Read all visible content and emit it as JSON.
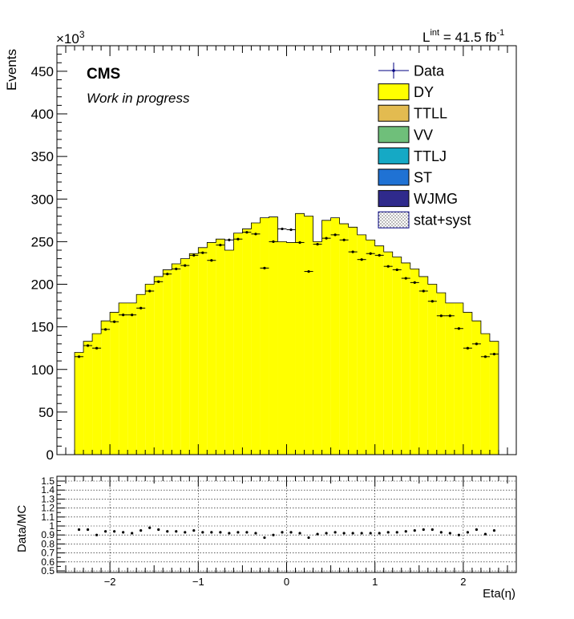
{
  "header": {
    "exponent_base": "×10",
    "exponent_power": "3",
    "lumi_L": "L",
    "lumi_sup": "int",
    "lumi_value": " = 41.5 fb",
    "lumi_unit_sup": "-1",
    "cms_label": "CMS",
    "work_label": "Work in progress"
  },
  "legend": {
    "entries": [
      {
        "label": "Data",
        "kind": "marker",
        "color": "#000080"
      },
      {
        "label": "DY",
        "kind": "box",
        "color": "#ffff00"
      },
      {
        "label": "TTLL",
        "kind": "box",
        "color": "#e3bb50"
      },
      {
        "label": "VV",
        "kind": "box",
        "color": "#6fbf7a"
      },
      {
        "label": "TTLJ",
        "kind": "box",
        "color": "#15a9c5"
      },
      {
        "label": "ST",
        "kind": "box",
        "color": "#1f72d4"
      },
      {
        "label": "WJMG",
        "kind": "box",
        "color": "#2f2a8c"
      },
      {
        "label": "stat+syst",
        "kind": "hatch",
        "color": "#555555"
      }
    ]
  },
  "chart_data": [
    {
      "type": "bar",
      "panel": "main",
      "ylabel": "Events",
      "ylim": [
        0,
        480
      ],
      "xlim": [
        -2.6,
        2.6
      ],
      "ytick_values": [
        0,
        50,
        100,
        150,
        200,
        250,
        300,
        350,
        400,
        450
      ],
      "ytick_labels": [
        "0",
        "50",
        "100",
        "150",
        "200",
        "250",
        "300",
        "350",
        "400",
        "450"
      ],
      "bin_edges": [
        -2.4,
        -2.3,
        -2.2,
        -2.1,
        -2.0,
        -1.9,
        -1.8,
        -1.7,
        -1.6,
        -1.5,
        -1.4,
        -1.3,
        -1.2,
        -1.1,
        -1.0,
        -0.9,
        -0.8,
        -0.7,
        -0.6,
        -0.5,
        -0.4,
        -0.3,
        -0.2,
        -0.1,
        0.0,
        0.1,
        0.2,
        0.3,
        0.4,
        0.5,
        0.6,
        0.7,
        0.8,
        0.9,
        1.0,
        1.1,
        1.2,
        1.3,
        1.4,
        1.5,
        1.6,
        1.7,
        1.8,
        1.9,
        2.0,
        2.1,
        2.2,
        2.3,
        2.4
      ],
      "series": [
        {
          "name": "DY",
          "color": "#ffff00",
          "values": [
            120,
            133,
            142,
            157,
            167,
            178,
            178,
            188,
            200,
            209,
            217,
            224,
            230,
            236,
            243,
            249,
            253,
            240,
            260,
            265,
            272,
            278,
            279,
            250,
            249,
            283,
            280,
            250,
            275,
            278,
            271,
            267,
            258,
            252,
            245,
            238,
            232,
            225,
            218,
            209,
            200,
            190,
            178,
            178,
            167,
            157,
            142,
            133
          ]
        },
        {
          "name": "Data",
          "values": [
            115,
            128,
            125,
            147,
            156,
            164,
            164,
            172,
            192,
            203,
            212,
            218,
            222,
            234,
            237,
            228,
            246,
            252,
            253,
            261,
            259,
            219,
            250,
            265,
            264,
            249,
            215,
            247,
            254,
            258,
            252,
            238,
            229,
            236,
            234,
            221,
            217,
            207,
            202,
            192,
            180,
            163,
            163,
            148,
            125,
            130,
            115,
            118
          ]
        }
      ]
    },
    {
      "type": "scatter",
      "panel": "ratio",
      "ylabel": "Data/MC",
      "xlabel": "Eta(η)",
      "ylim": [
        0.5,
        1.5
      ],
      "xlim": [
        -2.6,
        2.6
      ],
      "ytick_labels": [
        "0.5",
        "0.6",
        "0.7",
        "0.8",
        "0.9",
        "1",
        "1.1",
        "1.2",
        "1.3",
        "1.4",
        "1.5"
      ],
      "xtick_labels": [
        "−2",
        "−1",
        "0",
        "1",
        "2"
      ],
      "bin_centers": [
        -2.35,
        -2.25,
        -2.15,
        -2.05,
        -1.95,
        -1.85,
        -1.75,
        -1.65,
        -1.55,
        -1.45,
        -1.35,
        -1.25,
        -1.15,
        -1.05,
        -0.95,
        -0.85,
        -0.75,
        -0.65,
        -0.55,
        -0.45,
        -0.35,
        -0.25,
        -0.15,
        -0.05,
        0.05,
        0.15,
        0.25,
        0.35,
        0.45,
        0.55,
        0.65,
        0.75,
        0.85,
        0.95,
        1.05,
        1.15,
        1.25,
        1.35,
        1.45,
        1.55,
        1.65,
        1.75,
        1.85,
        1.95,
        2.05,
        2.15,
        2.25,
        2.35
      ],
      "values": [
        0.96,
        0.96,
        0.9,
        0.94,
        0.94,
        0.93,
        0.92,
        0.95,
        0.98,
        0.96,
        0.94,
        0.94,
        0.93,
        0.95,
        0.93,
        0.93,
        0.93,
        0.92,
        0.93,
        0.93,
        0.92,
        0.87,
        0.9,
        0.93,
        0.93,
        0.92,
        0.87,
        0.91,
        0.92,
        0.93,
        0.92,
        0.92,
        0.92,
        0.92,
        0.92,
        0.93,
        0.93,
        0.94,
        0.95,
        0.96,
        0.96,
        0.93,
        0.92,
        0.9,
        0.93,
        0.96,
        0.91,
        0.95
      ]
    }
  ]
}
